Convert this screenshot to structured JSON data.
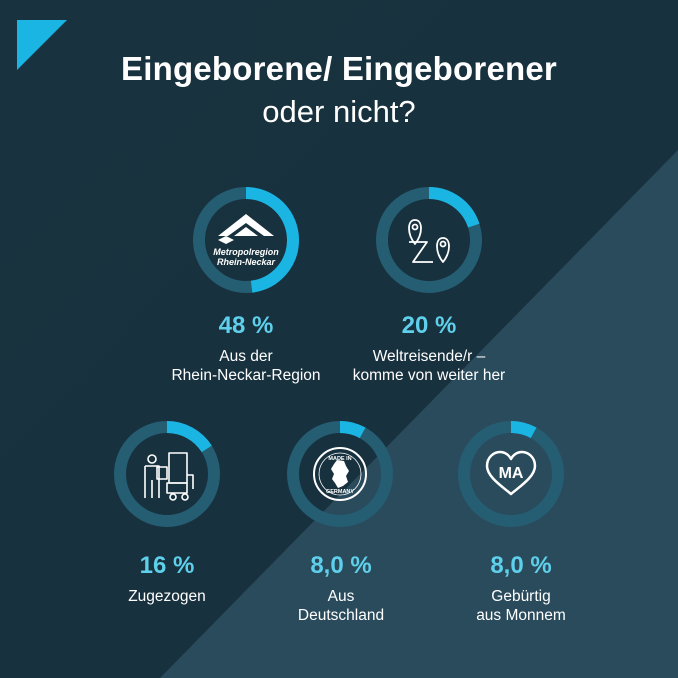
{
  "title": {
    "line1": "Eingeborene/ Eingeborener",
    "line2": "oder nicht?"
  },
  "colors": {
    "background_dark": "#17313f",
    "background_light": "#2b4d5e",
    "ring_track": "#255d73",
    "ring_fill": "#1bb5e3",
    "percent_text": "#5fd0ec",
    "label_text": "#ffffff",
    "corner_accent": "#1bb5e3"
  },
  "logo": {
    "line1": "Metropolregion",
    "line2": "Rhein-Neckar"
  },
  "stamp": {
    "top": "MADE IN",
    "bottom": "GERMANY"
  },
  "heart_text": "MA",
  "chart_data": {
    "type": "donut",
    "items": [
      {
        "value": 48,
        "value_label": "48 %",
        "label_lines": [
          "Aus der",
          "Rhein-Neckar-Region"
        ],
        "icon": "metropolregion-logo-icon"
      },
      {
        "value": 20,
        "value_label": "20 %",
        "label_lines": [
          "Weltreisende/r –",
          "komme von weiter her"
        ],
        "icon": "route-pins-icon"
      },
      {
        "value": 16,
        "value_label": "16 %",
        "label_lines": [
          "Zugezogen"
        ],
        "icon": "moving-person-icon"
      },
      {
        "value": 8.0,
        "value_label": "8,0 %",
        "label_lines": [
          "Aus",
          "Deutschland"
        ],
        "icon": "made-in-germany-icon"
      },
      {
        "value": 8.0,
        "value_label": "8,0 %",
        "label_lines": [
          "Gebürtig",
          "aus Monnem"
        ],
        "icon": "ma-heart-icon"
      }
    ],
    "max": 100
  }
}
